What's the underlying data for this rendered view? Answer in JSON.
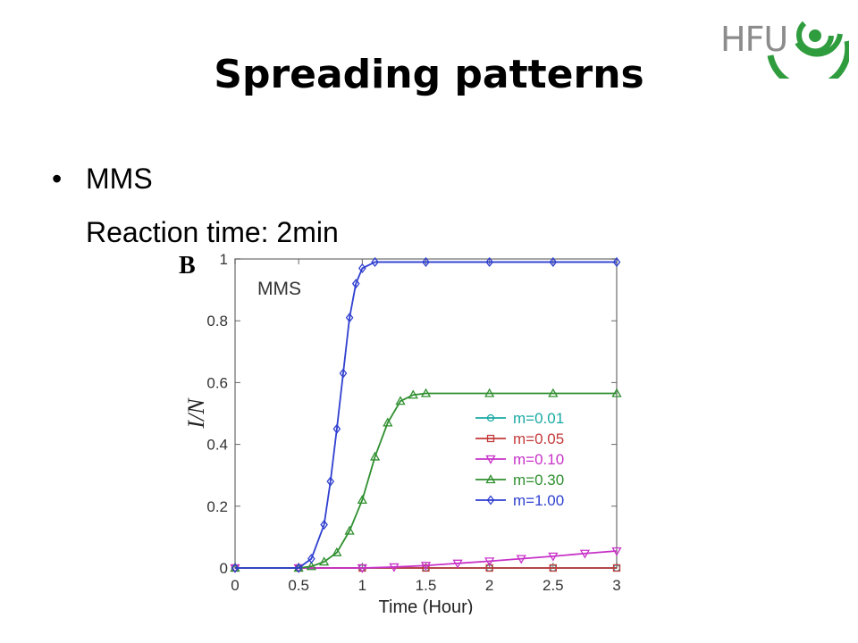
{
  "slide": {
    "title": "Spreading patterns",
    "logo_text": "HFU",
    "bullet": "MMS",
    "subline": "Reaction time: 2min"
  },
  "colors": {
    "logo_green": "#2f9c3e",
    "logo_gray": "#8c8c8c"
  },
  "chart_data": {
    "type": "line",
    "panel_label": "B",
    "inset_label": "MMS",
    "xlabel": "Time (Hour)",
    "ylabel": "I/N",
    "xlim": [
      0,
      3
    ],
    "ylim": [
      0,
      1
    ],
    "xticks": [
      0,
      0.5,
      1,
      1.5,
      2,
      2.5,
      3
    ],
    "xtick_labels": [
      "0",
      "0.5",
      "1",
      "1.5",
      "2",
      "2.5",
      "3"
    ],
    "yticks": [
      0,
      0.2,
      0.4,
      0.6,
      0.8,
      1
    ],
    "ytick_labels": [
      "0",
      "0.2",
      "0.4",
      "0.6",
      "0.8",
      "1"
    ],
    "legend_placement": "right",
    "series": [
      {
        "name": "m=0.01",
        "color": "#1aa9a3",
        "marker": "circle",
        "x": [
          0,
          0.5,
          1,
          1.5,
          2,
          2.5,
          3
        ],
        "y": [
          0,
          0,
          0,
          0,
          0,
          0,
          0
        ]
      },
      {
        "name": "m=0.05",
        "color": "#c43a3a",
        "marker": "square",
        "x": [
          0,
          0.5,
          1,
          1.5,
          2,
          2.5,
          3
        ],
        "y": [
          0,
          0,
          0,
          0,
          0,
          0,
          0
        ]
      },
      {
        "name": "m=0.10",
        "color": "#c832c8",
        "marker": "triangle-down",
        "x": [
          0,
          0.5,
          1,
          1.25,
          1.5,
          1.75,
          2,
          2.25,
          2.5,
          2.75,
          3
        ],
        "y": [
          0,
          0,
          0,
          0.003,
          0.008,
          0.015,
          0.022,
          0.03,
          0.038,
          0.047,
          0.055
        ]
      },
      {
        "name": "m=0.30",
        "color": "#2f8f2f",
        "marker": "triangle-up",
        "x": [
          0,
          0.5,
          0.6,
          0.7,
          0.8,
          0.9,
          1.0,
          1.1,
          1.2,
          1.3,
          1.4,
          1.5,
          2,
          2.5,
          3
        ],
        "y": [
          0,
          0,
          0.005,
          0.02,
          0.05,
          0.12,
          0.22,
          0.36,
          0.47,
          0.54,
          0.56,
          0.565,
          0.565,
          0.565,
          0.565
        ]
      },
      {
        "name": "m=1.00",
        "color": "#2f3fd0",
        "marker": "diamond",
        "x": [
          0,
          0.5,
          0.6,
          0.7,
          0.75,
          0.8,
          0.85,
          0.9,
          0.95,
          1.0,
          1.1,
          1.5,
          2,
          2.5,
          3
        ],
        "y": [
          0,
          0,
          0.03,
          0.14,
          0.28,
          0.45,
          0.63,
          0.81,
          0.92,
          0.97,
          0.99,
          0.99,
          0.99,
          0.99,
          0.99
        ]
      }
    ]
  }
}
